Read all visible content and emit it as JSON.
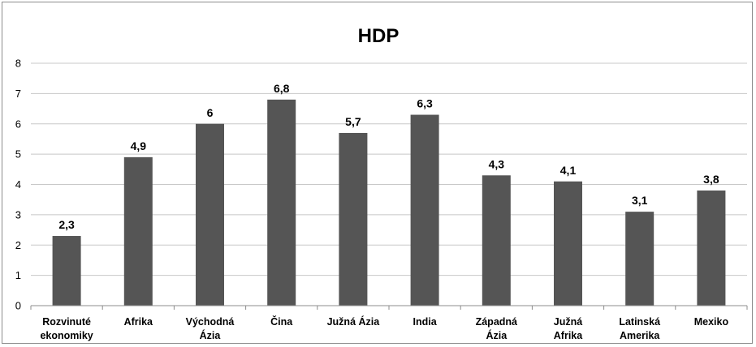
{
  "chart_data": {
    "type": "bar",
    "title": "HDP",
    "xlabel": "",
    "ylabel": "",
    "ylim": [
      0,
      8
    ],
    "yticks": [
      "0",
      "1",
      "2",
      "3",
      "4",
      "5",
      "6",
      "7",
      "8"
    ],
    "grid": true,
    "categories": [
      [
        "Rozvinuté",
        "ekonomiky"
      ],
      [
        "Afrika"
      ],
      [
        "Východná",
        "Ázia"
      ],
      [
        "Čina"
      ],
      [
        "Južná Ázia"
      ],
      [
        "India"
      ],
      [
        "Západná",
        "Ázia"
      ],
      [
        "Južná",
        "Afrika"
      ],
      [
        "Latinská",
        "Amerika"
      ],
      [
        "Mexiko"
      ]
    ],
    "values": [
      2.3,
      4.9,
      6,
      6.8,
      5.7,
      6.3,
      4.3,
      4.1,
      3.1,
      3.8
    ],
    "data_labels": [
      "2,3",
      "4,9",
      "6",
      "6,8",
      "5,7",
      "6,3",
      "4,3",
      "4,1",
      "3,1",
      "3,8"
    ],
    "bar_color": "#555555",
    "grid_color": "#c8c8c8"
  }
}
